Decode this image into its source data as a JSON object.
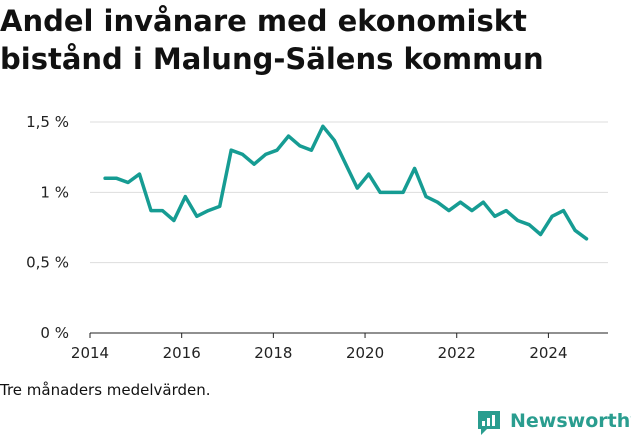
{
  "chart_data": {
    "type": "line",
    "title": "Andel invånare med ekonomiskt bistånd i Malung-Sälens kommun",
    "xlabel": "",
    "ylabel": "",
    "xlim": [
      2014.0,
      2025.3
    ],
    "ylim": [
      0,
      1.55
    ],
    "y_ticks": [
      0,
      0.5,
      1,
      1.5
    ],
    "y_tick_labels": [
      "0 %",
      "0,5 %",
      "1 %",
      "1,5 %"
    ],
    "x_ticks": [
      2014,
      2016,
      2018,
      2020,
      2022,
      2024
    ],
    "x_tick_labels": [
      "2014",
      "2016",
      "2018",
      "2020",
      "2022",
      "2024"
    ],
    "grid": true,
    "line_color": "#169c93",
    "series": [
      {
        "x": [
          2014.33,
          2014.58,
          2014.83,
          2015.08,
          2015.33,
          2015.58,
          2015.83,
          2016.08,
          2016.33,
          2016.58,
          2016.83,
          2017.08,
          2017.33,
          2017.58,
          2017.83,
          2018.08,
          2018.33,
          2018.58,
          2018.83,
          2019.08,
          2019.33,
          2019.58,
          2019.83,
          2020.08,
          2020.33,
          2020.58,
          2020.83,
          2021.08,
          2021.33,
          2021.58,
          2021.83,
          2022.08,
          2022.33,
          2022.58,
          2022.83,
          2023.08,
          2023.33,
          2023.58,
          2023.83,
          2024.08,
          2024.33,
          2024.58,
          2024.83
        ],
        "values": [
          1.1,
          1.1,
          1.07,
          1.13,
          0.87,
          0.87,
          0.8,
          0.97,
          0.83,
          0.87,
          0.9,
          1.3,
          1.27,
          1.2,
          1.27,
          1.3,
          1.4,
          1.33,
          1.3,
          1.47,
          1.37,
          1.2,
          1.03,
          1.13,
          1.0,
          1.0,
          1.0,
          1.17,
          0.97,
          0.93,
          0.87,
          0.93,
          0.87,
          0.93,
          0.83,
          0.87,
          0.8,
          0.77,
          0.7,
          0.83,
          0.87,
          0.73,
          0.67
        ]
      }
    ]
  },
  "footnote": "Tre månaders medelvärden.",
  "brand": {
    "name": "Newsworthy",
    "icon": "newsworthy-logo-icon",
    "color": "#2a9d8f"
  }
}
